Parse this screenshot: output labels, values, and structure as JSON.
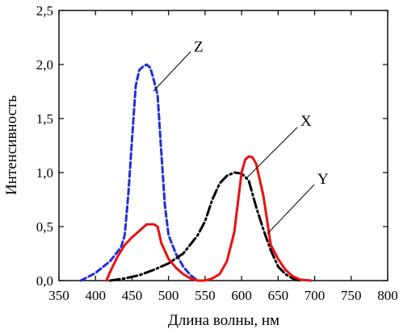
{
  "chart_data": {
    "type": "line",
    "xlabel": "Длина волны, нм",
    "ylabel": "Интенсивность",
    "xlim": [
      350,
      800
    ],
    "ylim": [
      0,
      2.5
    ],
    "x_ticks": [
      "350",
      "400",
      "450",
      "500",
      "550",
      "600",
      "650",
      "700",
      "750",
      "800"
    ],
    "y_ticks": [
      "0,0",
      "0,5",
      "1,0",
      "1,5",
      "2,0",
      "2,5"
    ],
    "grid": false,
    "colors": {
      "blue": "#1f2fd8",
      "red": "#ea1010",
      "black": "#000000"
    },
    "series": [
      {
        "name": "Z",
        "color": "#1f2fd8",
        "style": "dashed",
        "points": [
          [
            380,
            0.0
          ],
          [
            400,
            0.07
          ],
          [
            420,
            0.18
          ],
          [
            435,
            0.31
          ],
          [
            440,
            0.42
          ],
          [
            445,
            0.8
          ],
          [
            450,
            1.3
          ],
          [
            455,
            1.8
          ],
          [
            460,
            1.95
          ],
          [
            465,
            1.98
          ],
          [
            470,
            2.0
          ],
          [
            475,
            1.97
          ],
          [
            480,
            1.85
          ],
          [
            485,
            1.72
          ],
          [
            490,
            1.2
          ],
          [
            495,
            0.7
          ],
          [
            500,
            0.42
          ],
          [
            510,
            0.25
          ],
          [
            520,
            0.13
          ],
          [
            530,
            0.05
          ],
          [
            540,
            0.0
          ]
        ]
      },
      {
        "name": "X",
        "color": "#000000",
        "style": "dash-dot",
        "points": [
          [
            420,
            0.0
          ],
          [
            440,
            0.02
          ],
          [
            460,
            0.05
          ],
          [
            480,
            0.1
          ],
          [
            500,
            0.16
          ],
          [
            520,
            0.25
          ],
          [
            540,
            0.42
          ],
          [
            550,
            0.55
          ],
          [
            560,
            0.75
          ],
          [
            570,
            0.9
          ],
          [
            580,
            0.97
          ],
          [
            590,
            1.0
          ],
          [
            600,
            0.99
          ],
          [
            605,
            0.96
          ],
          [
            610,
            0.92
          ],
          [
            620,
            0.68
          ],
          [
            630,
            0.47
          ],
          [
            640,
            0.28
          ],
          [
            650,
            0.13
          ],
          [
            660,
            0.06
          ],
          [
            670,
            0.02
          ],
          [
            680,
            0.0
          ]
        ]
      },
      {
        "name": "Y",
        "color": "#ea1010",
        "style": "solid",
        "points": [
          [
            415,
            0.0
          ],
          [
            420,
            0.08
          ],
          [
            430,
            0.22
          ],
          [
            440,
            0.33
          ],
          [
            450,
            0.4
          ],
          [
            460,
            0.46
          ],
          [
            470,
            0.52
          ],
          [
            480,
            0.52
          ],
          [
            485,
            0.5
          ],
          [
            490,
            0.35
          ],
          [
            500,
            0.2
          ],
          [
            510,
            0.12
          ],
          [
            520,
            0.06
          ],
          [
            530,
            0.02
          ],
          [
            540,
            0.0
          ],
          [
            550,
            0.0
          ],
          [
            560,
            0.02
          ],
          [
            570,
            0.06
          ],
          [
            580,
            0.18
          ],
          [
            590,
            0.45
          ],
          [
            600,
            1.0
          ],
          [
            605,
            1.12
          ],
          [
            610,
            1.15
          ],
          [
            615,
            1.14
          ],
          [
            620,
            1.08
          ],
          [
            630,
            0.78
          ],
          [
            640,
            0.33
          ],
          [
            650,
            0.2
          ],
          [
            660,
            0.1
          ],
          [
            670,
            0.04
          ],
          [
            680,
            0.01
          ],
          [
            695,
            0.0
          ]
        ]
      }
    ]
  }
}
